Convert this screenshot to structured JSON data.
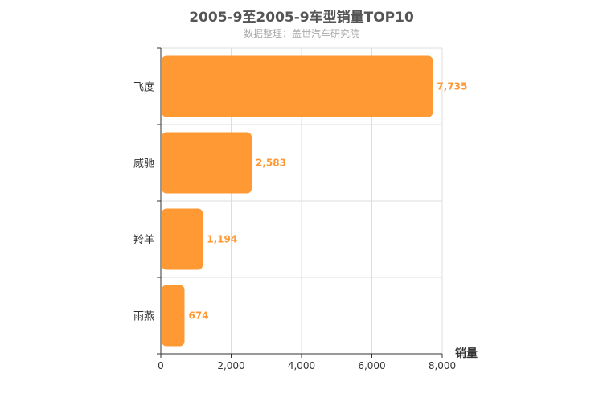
{
  "title": "2005-9至2005-9车型销量TOP10",
  "subtitle": "数据整理：盖世汽车研究院",
  "chart_data": {
    "type": "bar",
    "orientation": "horizontal",
    "title": "2005-9至2005-9车型销量TOP10",
    "subtitle": "数据整理：盖世汽车研究院",
    "xlabel": "销量",
    "ylabel": "",
    "categories": [
      "飞度",
      "威驰",
      "羚羊",
      "雨燕"
    ],
    "values": [
      7735,
      2583,
      1194,
      674
    ],
    "value_labels": [
      "7,735",
      "2,583",
      "1,194",
      "674"
    ],
    "xlim": [
      0,
      8000
    ],
    "xticks": [
      0,
      2000,
      4000,
      6000,
      8000
    ],
    "xtick_labels": [
      "0",
      "2,000",
      "4,000",
      "6,000",
      "8,000"
    ],
    "grid": true,
    "bar_color": "#ff9933",
    "label_color": "#ff9933"
  }
}
